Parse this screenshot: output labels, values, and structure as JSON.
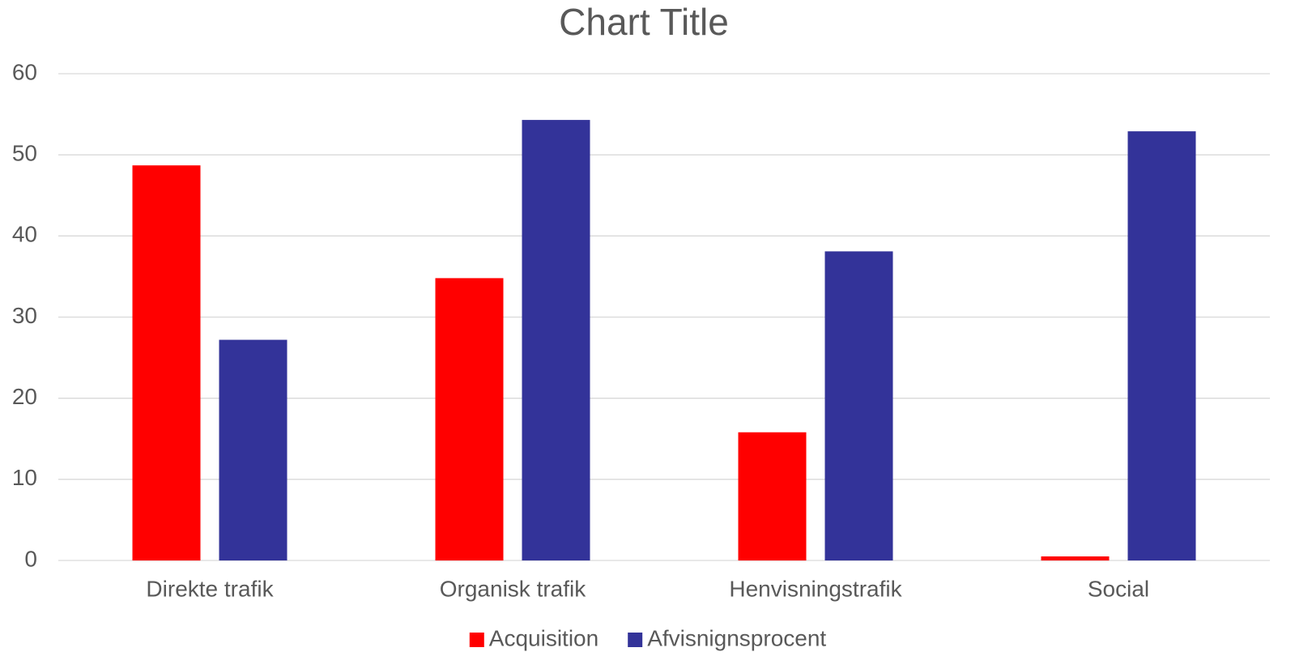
{
  "chart_data": {
    "type": "bar",
    "title": "Chart Title",
    "categories": [
      "Direkte trafik",
      "Organisk trafik",
      "Henvisningstrafik",
      "Social"
    ],
    "series": [
      {
        "name": "Acquisition",
        "color": "#ff0000",
        "values": [
          48.7,
          34.8,
          15.8,
          0.5
        ]
      },
      {
        "name": "Afvisnignsprocent",
        "color": "#333399",
        "values": [
          27.2,
          54.3,
          38.1,
          52.9
        ]
      }
    ],
    "ylim": [
      0,
      60
    ],
    "yticks": [
      0,
      10,
      20,
      30,
      40,
      50,
      60
    ],
    "grid": true,
    "legend": "bottom"
  }
}
